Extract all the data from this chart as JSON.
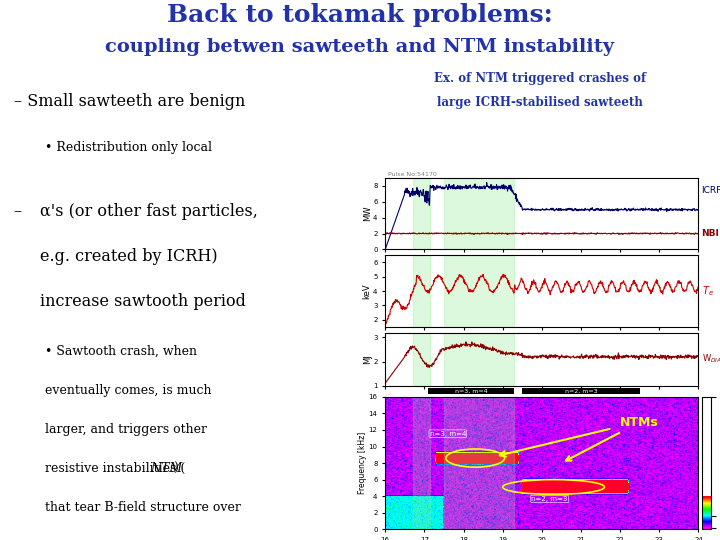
{
  "title1": "Back to tokamak problems:",
  "title2": "coupling betwen sawteeth and NTM instability",
  "subtitle1": "Ex. of NTM triggered crashes of",
  "subtitle2": "large ICRH-stabilised sawteeth",
  "title_color": "#2233AA",
  "subtitle_color": "#2233AA",
  "bg_color": "#ffffff",
  "text_color": "#000000",
  "ICRF_color": "#000066",
  "NBI_color": "#8B0000",
  "Te_color": "#CC0000",
  "WDIA_color": "#8B0000",
  "NTMs_color": "#FFFF00",
  "t_min": 16,
  "t_max": 24,
  "pulse_label": "Pulse No:54170"
}
